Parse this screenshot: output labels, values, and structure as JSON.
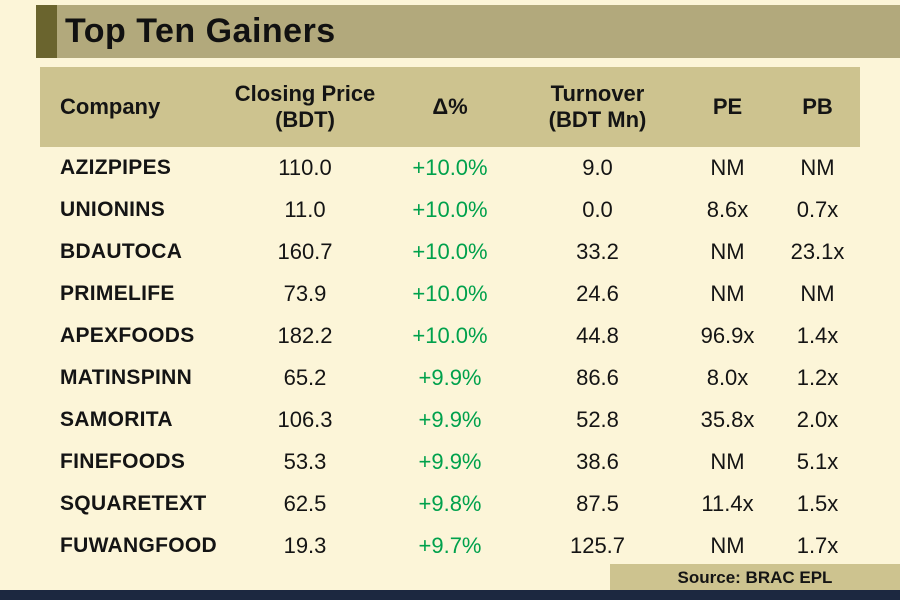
{
  "colors": {
    "background": "#FCF5D8",
    "khaki_band": "#CDC38F",
    "title_strip": "#B2A97C",
    "accent_block": "#6A642E",
    "green": "#00A14C",
    "bottom_bar": "#1C2840",
    "text": "#141414"
  },
  "chart_data": {
    "type": "table",
    "title": "Top Ten Gainers",
    "columns": [
      "Company",
      "Closing Price\n(BDT)",
      "Δ%",
      "Turnover\n(BDT Mn)",
      "PE",
      "PB"
    ],
    "rows": [
      [
        "AZIZPIPES",
        "110.0",
        "+10.0%",
        "9.0",
        "NM",
        "NM"
      ],
      [
        "UNIONINS",
        "11.0",
        "+10.0%",
        "0.0",
        "8.6x",
        "0.7x"
      ],
      [
        "BDAUTOCA",
        "160.7",
        "+10.0%",
        "33.2",
        "NM",
        "23.1x"
      ],
      [
        "PRIMELIFE",
        "73.9",
        "+10.0%",
        "24.6",
        "NM",
        "NM"
      ],
      [
        "APEXFOODS",
        "182.2",
        "+10.0%",
        "44.8",
        "96.9x",
        "1.4x"
      ],
      [
        "MATINSPINN",
        "65.2",
        "+9.9%",
        "86.6",
        "8.0x",
        "1.2x"
      ],
      [
        "SAMORITA",
        "106.3",
        "+9.9%",
        "52.8",
        "35.8x",
        "2.0x"
      ],
      [
        "FINEFOODS",
        "53.3",
        "+9.9%",
        "38.6",
        "NM",
        "5.1x"
      ],
      [
        "SQUARETEXT",
        "62.5",
        "+9.8%",
        "87.5",
        "11.4x",
        "1.5x"
      ],
      [
        "FUWANGFOOD",
        "19.3",
        "+9.7%",
        "125.7",
        "NM",
        "1.7x"
      ]
    ],
    "source": "Source: BRAC EPL",
    "layout": {
      "change_column_color": "green",
      "grid": false,
      "striping": false
    }
  }
}
